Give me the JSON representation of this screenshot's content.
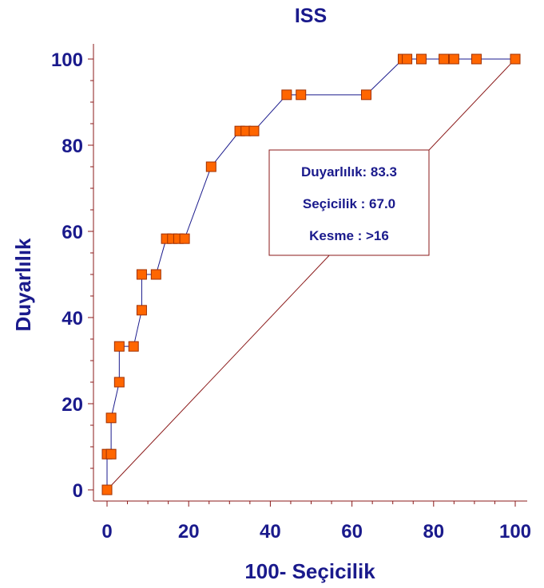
{
  "chart_data": {
    "type": "line",
    "title": "ISS",
    "xlabel": "100- Seçicilik",
    "ylabel": "Duyarlılık",
    "xlim": [
      0,
      100
    ],
    "ylim": [
      0,
      100
    ],
    "x_ticks": [
      "0",
      "20",
      "40",
      "60",
      "80",
      "100"
    ],
    "y_ticks": [
      "0",
      "20",
      "40",
      "60",
      "80",
      "100"
    ],
    "grid": false,
    "colors": {
      "curve": "#1a1a8c",
      "marker_fill": "#ff6600",
      "marker_stroke": "#a03000",
      "diagonal": "#8b1a1a",
      "text": "#1a1a8c"
    },
    "series": [
      {
        "x": [
          0,
          0,
          1,
          1,
          3,
          3,
          6.5,
          8.5,
          8.5,
          12,
          14.5,
          16,
          17.5,
          19,
          25.5,
          32.5,
          34,
          36,
          44,
          47.5,
          63.5,
          72.5,
          73.5,
          77,
          82.5,
          85,
          90.5,
          100
        ],
        "y": [
          0,
          8.3,
          8.3,
          16.7,
          25,
          33.3,
          33.3,
          41.7,
          50,
          50,
          58.3,
          58.3,
          58.3,
          58.3,
          75,
          83.3,
          83.3,
          83.3,
          91.7,
          91.7,
          91.7,
          100,
          100,
          100,
          100,
          100,
          100,
          100
        ]
      }
    ],
    "reference_line": {
      "x": [
        0,
        100
      ],
      "y": [
        0,
        100
      ]
    },
    "info_box": {
      "lines": [
        "Duyarlılık: 83.3",
        "Seçicilik : 67.0",
        "Kesme  : >16"
      ],
      "anchor": {
        "x": 33,
        "y": 83.3
      }
    }
  }
}
